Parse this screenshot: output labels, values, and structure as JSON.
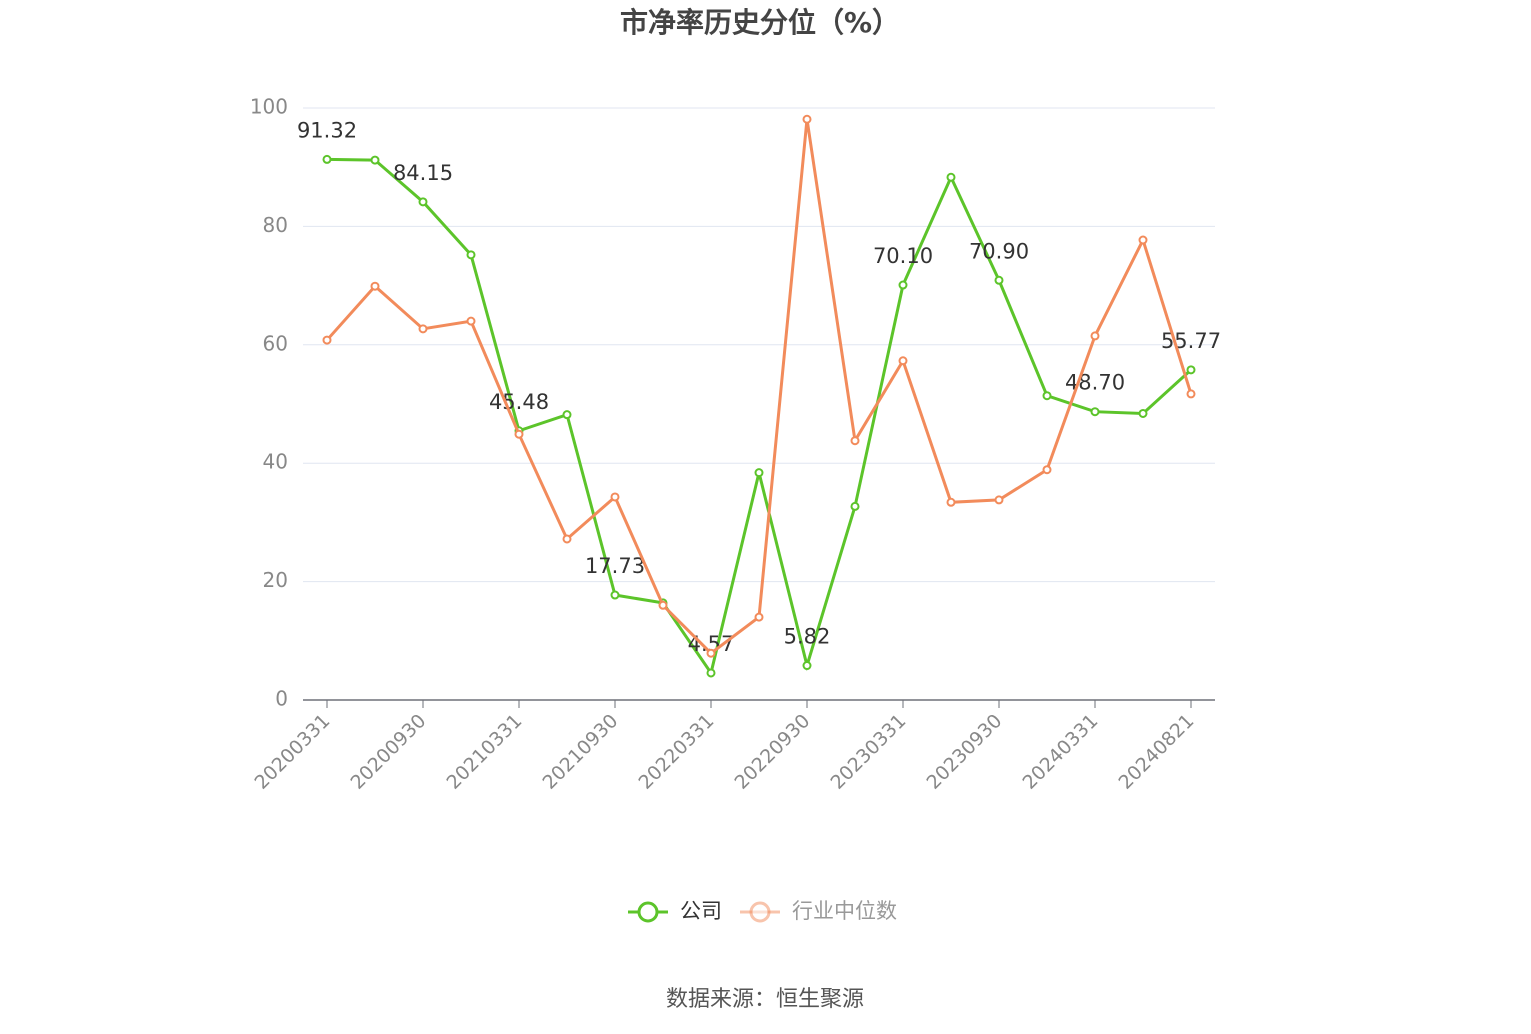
{
  "chart_data": {
    "type": "line",
    "title": "市净率历史分位（%）",
    "categories": [
      "20200331",
      null,
      "20200930",
      null,
      "20210331",
      null,
      "20210930",
      null,
      "20220331",
      null,
      "20220930",
      null,
      "20230331",
      null,
      "20230930",
      null,
      "20240331",
      null,
      "20240821"
    ],
    "series": [
      {
        "name": "公司",
        "color": "#5cc42a",
        "values": [
          91.32,
          91.2,
          84.15,
          75.2,
          45.48,
          48.2,
          17.73,
          16.4,
          4.57,
          38.4,
          5.82,
          32.7,
          70.1,
          88.3,
          70.9,
          51.4,
          48.7,
          48.4,
          55.77
        ],
        "value_labels": [
          "91.32",
          null,
          "84.15",
          null,
          "45.48",
          null,
          "17.73",
          null,
          "4.57",
          null,
          "5.82",
          null,
          "70.10",
          null,
          "70.90",
          null,
          "48.70",
          null,
          "55.77"
        ]
      },
      {
        "name": "行业中位数",
        "color": "#f28b5b",
        "values": [
          60.8,
          69.9,
          62.7,
          64.0,
          44.9,
          27.2,
          34.3,
          16.0,
          7.9,
          14.0,
          98.1,
          43.8,
          57.3,
          33.4,
          33.8,
          38.9,
          61.5,
          77.7,
          51.7
        ]
      }
    ],
    "ylim": [
      0,
      100
    ],
    "yticks": [
      0,
      20,
      40,
      60,
      80,
      100
    ],
    "grid": true,
    "source": "数据来源：恒生聚源"
  }
}
